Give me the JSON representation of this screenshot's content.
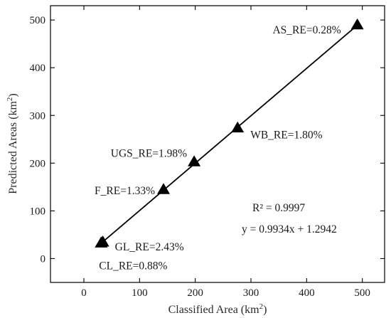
{
  "chart_data": {
    "type": "scatter",
    "xlabel": "Classified Area (km",
    "xlabel_sup": "2",
    "xlabel_end": ")",
    "ylabel": "Predicted Areas (km",
    "ylabel_sup": "2",
    "ylabel_end": ")",
    "xlim": [
      -60,
      540
    ],
    "ylim": [
      -50,
      530
    ],
    "xticks": [
      0,
      100,
      200,
      300,
      400,
      500
    ],
    "yticks": [
      0,
      100,
      200,
      300,
      400,
      500
    ],
    "grid": false,
    "legend": "none",
    "points": [
      {
        "x": 31,
        "y": 33,
        "label": "CL_RE=0.88%"
      },
      {
        "x": 34,
        "y": 35,
        "label": "GL_RE=2.43%"
      },
      {
        "x": 143,
        "y": 145,
        "label": "F_RE=1.33%"
      },
      {
        "x": 198,
        "y": 203,
        "label": "UGS_RE=1.98%"
      },
      {
        "x": 276,
        "y": 274,
        "label": "WB_RE=1.80%"
      },
      {
        "x": 491,
        "y": 490,
        "label": "AS_RE=0.28%"
      }
    ],
    "fit": {
      "slope": 0.9934,
      "intercept": 1.2942,
      "x_range": [
        31,
        491
      ]
    },
    "annotations": {
      "r2": "R² = 0.9997",
      "equation": "y = 0.9934x + 1.2942"
    }
  }
}
